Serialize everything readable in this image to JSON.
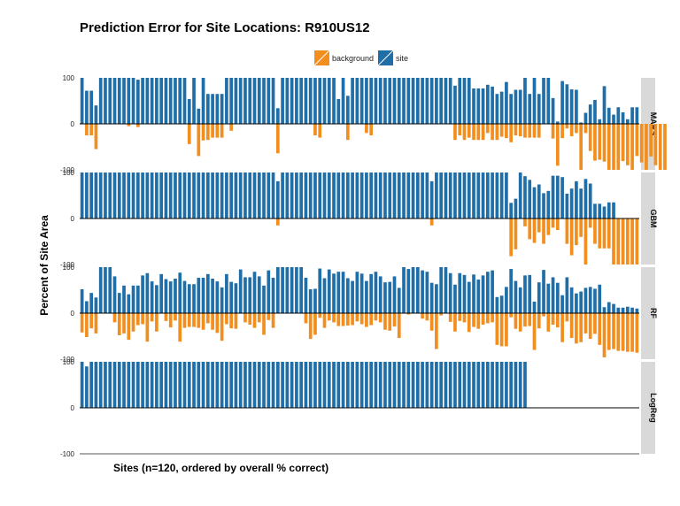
{
  "title": "Prediction Error for Site Locations: R910US12",
  "xlabel": "Sites (n=120, ordered by overall % correct)",
  "ylabel": "Percent of Site Area",
  "colors": {
    "background": "#f28e1e",
    "site": "#1f6ea8",
    "strip": "#d9d9d9",
    "zero_line": "#000000"
  },
  "legend": [
    {
      "key": "background",
      "label": "background"
    },
    {
      "key": "site",
      "label": "site"
    }
  ],
  "chart_data": {
    "type": "bar",
    "title": "Prediction Error for Site Locations: R910US12",
    "xlabel": "Sites (n=120, ordered by overall % correct)",
    "ylabel": "Percent of Site Area",
    "ylim": [
      -100,
      100
    ],
    "yticks": [
      100,
      0,
      -100
    ],
    "legend_position": "top-center",
    "grid": false,
    "n_sites": 120,
    "panels": [
      {
        "name": "MARS",
        "series": [
          {
            "name": "site",
            "values": [
              100,
              72,
              72,
              40,
              100,
              100,
              100,
              100,
              100,
              100,
              100,
              100,
              96,
              100,
              100,
              100,
              100,
              100,
              100,
              100,
              100,
              100,
              100,
              54,
              100,
              33,
              100,
              65,
              65,
              65,
              65,
              100,
              100,
              100,
              100,
              100,
              100,
              100,
              100,
              100,
              100,
              100,
              34,
              100,
              100,
              100,
              100,
              100,
              100,
              100,
              100,
              100,
              100,
              100,
              100,
              54,
              100,
              61,
              100,
              100,
              100,
              100,
              100,
              100,
              100,
              100,
              100,
              100,
              100,
              100,
              100,
              100,
              100,
              100,
              100,
              100,
              100,
              100,
              100,
              100,
              83,
              100,
              100,
              100,
              77,
              77,
              77,
              85,
              81,
              65,
              70,
              91,
              65,
              74,
              74,
              100,
              65,
              100,
              65,
              100,
              100,
              56,
              5,
              93,
              86,
              75,
              74,
              3,
              24,
              42,
              52,
              10,
              82,
              35,
              20,
              36,
              25,
              10,
              36,
              36
            ]
          },
          {
            "name": "background",
            "values": [
              0,
              -25,
              -25,
              -55,
              0,
              0,
              0,
              0,
              0,
              0,
              -5,
              0,
              -7,
              0,
              0,
              0,
              0,
              0,
              0,
              0,
              0,
              0,
              0,
              -44,
              0,
              -70,
              -36,
              -35,
              -30,
              -30,
              -30,
              0,
              -15,
              0,
              0,
              0,
              0,
              0,
              0,
              0,
              0,
              0,
              -64,
              0,
              0,
              0,
              0,
              0,
              0,
              0,
              -25,
              -30,
              0,
              0,
              0,
              0,
              0,
              -35,
              0,
              0,
              0,
              -20,
              -25,
              0,
              0,
              0,
              0,
              0,
              0,
              0,
              0,
              0,
              0,
              0,
              0,
              0,
              0,
              0,
              0,
              0,
              -35,
              -25,
              -35,
              -30,
              -35,
              -35,
              -35,
              -20,
              -35,
              -35,
              -28,
              -31,
              -40,
              -25,
              -27,
              -30,
              -30,
              -30,
              -30,
              0,
              0,
              -32,
              -91,
              -31,
              -10,
              -27,
              -20,
              -100,
              -20,
              -59,
              -80,
              -78,
              -82,
              -100,
              -100,
              -100,
              -81,
              -90,
              -100,
              -70,
              -84,
              -100,
              -71,
              -90,
              -100,
              -100
            ]
          }
        ]
      },
      {
        "name": "GBM",
        "series": [
          {
            "name": "site",
            "values": [
              100,
              100,
              100,
              100,
              100,
              100,
              100,
              100,
              100,
              100,
              100,
              100,
              100,
              100,
              100,
              100,
              100,
              100,
              100,
              100,
              100,
              100,
              100,
              100,
              100,
              100,
              100,
              100,
              100,
              100,
              100,
              100,
              100,
              100,
              100,
              100,
              100,
              100,
              100,
              100,
              100,
              100,
              81,
              100,
              100,
              100,
              100,
              100,
              100,
              100,
              100,
              100,
              100,
              100,
              100,
              100,
              100,
              100,
              100,
              100,
              100,
              100,
              100,
              100,
              100,
              100,
              100,
              100,
              100,
              100,
              100,
              100,
              100,
              100,
              100,
              81,
              100,
              100,
              100,
              100,
              100,
              100,
              100,
              100,
              100,
              100,
              100,
              100,
              100,
              100,
              100,
              100,
              34,
              43,
              100,
              92,
              84,
              68,
              74,
              55,
              60,
              93,
              93,
              90,
              54,
              65,
              81,
              65,
              86,
              76,
              32,
              32,
              26,
              35,
              35,
              0,
              0,
              0,
              0,
              0
            ]
          },
          {
            "name": "background",
            "values": [
              0,
              0,
              0,
              0,
              0,
              0,
              0,
              0,
              0,
              0,
              0,
              0,
              0,
              0,
              0,
              0,
              0,
              0,
              0,
              0,
              0,
              0,
              0,
              0,
              0,
              0,
              0,
              0,
              0,
              0,
              0,
              0,
              0,
              0,
              0,
              0,
              0,
              0,
              0,
              0,
              0,
              0,
              -15,
              0,
              0,
              0,
              0,
              0,
              0,
              0,
              0,
              0,
              0,
              0,
              0,
              0,
              0,
              0,
              0,
              0,
              0,
              0,
              0,
              0,
              0,
              0,
              0,
              0,
              0,
              0,
              0,
              0,
              0,
              0,
              0,
              -15,
              0,
              0,
              0,
              0,
              0,
              0,
              0,
              0,
              0,
              0,
              0,
              0,
              0,
              0,
              0,
              0,
              -82,
              -67,
              0,
              -17,
              -45,
              -53,
              -30,
              -55,
              -36,
              -20,
              -25,
              0,
              -55,
              -80,
              -58,
              -40,
              -100,
              -20,
              -55,
              -65,
              -65,
              -65,
              -100,
              -100,
              -100,
              -100,
              -100,
              -100
            ]
          }
        ]
      },
      {
        "name": "RF",
        "series": [
          {
            "name": "site",
            "values": [
              52,
              26,
              44,
              34,
              100,
              100,
              100,
              80,
              44,
              60,
              41,
              60,
              60,
              82,
              87,
              69,
              61,
              85,
              74,
              69,
              75,
              88,
              70,
              63,
              63,
              77,
              77,
              85,
              75,
              69,
              56,
              85,
              68,
              65,
              95,
              78,
              78,
              90,
              80,
              60,
              93,
              77,
              100,
              100,
              100,
              100,
              100,
              100,
              77,
              52,
              53,
              97,
              76,
              95,
              86,
              90,
              90,
              76,
              70,
              90,
              86,
              70,
              85,
              90,
              80,
              67,
              68,
              80,
              55,
              100,
              96,
              100,
              100,
              93,
              90,
              66,
              63,
              100,
              100,
              87,
              62,
              87,
              83,
              68,
              84,
              73,
              82,
              90,
              93,
              35,
              38,
              57,
              96,
              70,
              56,
              82,
              83,
              25,
              67,
              94,
              64,
              78,
              66,
              39,
              78,
              56,
              43,
              47,
              55,
              57,
              53,
              62,
              13,
              24,
              20,
              12,
              12,
              14,
              12,
              10
            ]
          },
          {
            "name": "background",
            "values": [
              -42,
              -52,
              -33,
              -44,
              0,
              0,
              0,
              -20,
              -48,
              -44,
              -58,
              -40,
              -26,
              -24,
              -62,
              -18,
              -40,
              0,
              -17,
              -31,
              -16,
              -62,
              -32,
              -30,
              -30,
              -32,
              -36,
              -22,
              -36,
              -43,
              -60,
              -24,
              -33,
              -34,
              0,
              -20,
              -25,
              -32,
              -20,
              -47,
              -15,
              -32,
              0,
              0,
              0,
              0,
              0,
              0,
              -22,
              -56,
              -47,
              -10,
              -32,
              -16,
              -20,
              -28,
              -28,
              -27,
              -26,
              -18,
              -24,
              -30,
              -26,
              -16,
              -20,
              -36,
              -38,
              -29,
              -54,
              0,
              -3,
              0,
              0,
              -12,
              -16,
              -38,
              -78,
              -5,
              0,
              -19,
              -40,
              -17,
              -20,
              -41,
              -30,
              -34,
              -25,
              -22,
              -20,
              -69,
              -72,
              -72,
              -9,
              -34,
              -40,
              -29,
              -28,
              -80,
              -33,
              -7,
              -40,
              -25,
              -31,
              -63,
              -18,
              -54,
              -66,
              -63,
              -44,
              -56,
              -45,
              -69,
              -96,
              -80,
              -78,
              -82,
              -82,
              -84,
              -84,
              -86
            ]
          }
        ]
      },
      {
        "name": "LogReg",
        "series": [
          {
            "name": "site",
            "values": [
              100,
              90,
              100,
              100,
              100,
              100,
              100,
              100,
              100,
              100,
              100,
              100,
              100,
              100,
              100,
              100,
              100,
              100,
              100,
              100,
              100,
              100,
              100,
              100,
              100,
              100,
              100,
              100,
              100,
              100,
              100,
              100,
              100,
              100,
              100,
              100,
              100,
              100,
              100,
              100,
              100,
              100,
              100,
              100,
              100,
              100,
              100,
              100,
              100,
              100,
              100,
              100,
              100,
              100,
              100,
              100,
              100,
              100,
              100,
              100,
              100,
              100,
              100,
              100,
              100,
              100,
              100,
              100,
              100,
              100,
              100,
              100,
              100,
              100,
              100,
              100,
              100,
              100,
              100,
              100,
              100,
              100,
              100,
              100,
              100,
              100,
              100,
              100,
              100,
              100,
              100,
              100,
              100,
              100,
              100,
              100,
              0,
              0,
              0,
              0,
              0,
              0,
              0,
              0,
              0,
              0,
              0,
              0,
              0,
              0,
              0,
              0,
              0,
              0,
              0,
              0,
              0,
              0,
              0,
              0
            ]
          },
          {
            "name": "background",
            "values": [
              0,
              0,
              0,
              0,
              0,
              0,
              0,
              0,
              0,
              0,
              0,
              0,
              0,
              0,
              0,
              0,
              0,
              0,
              0,
              0,
              0,
              0,
              0,
              0,
              0,
              0,
              0,
              0,
              0,
              0,
              0,
              0,
              0,
              0,
              0,
              0,
              0,
              0,
              0,
              0,
              0,
              0,
              0,
              0,
              0,
              0,
              0,
              0,
              0,
              0,
              0,
              0,
              0,
              0,
              0,
              0,
              0,
              0,
              0,
              0,
              0,
              0,
              0,
              0,
              0,
              0,
              0,
              0,
              0,
              0,
              0,
              0,
              0,
              0,
              0,
              0,
              0,
              0,
              0,
              0,
              0,
              0,
              0,
              0,
              0,
              0,
              0,
              0,
              0,
              0,
              0,
              0,
              0,
              0,
              0,
              0,
              0,
              0,
              0,
              0,
              0,
              0,
              0,
              0,
              0,
              0,
              0,
              0,
              0,
              0,
              0,
              0,
              0,
              0,
              0,
              0,
              0,
              0,
              0,
              0
            ]
          }
        ]
      }
    ]
  }
}
